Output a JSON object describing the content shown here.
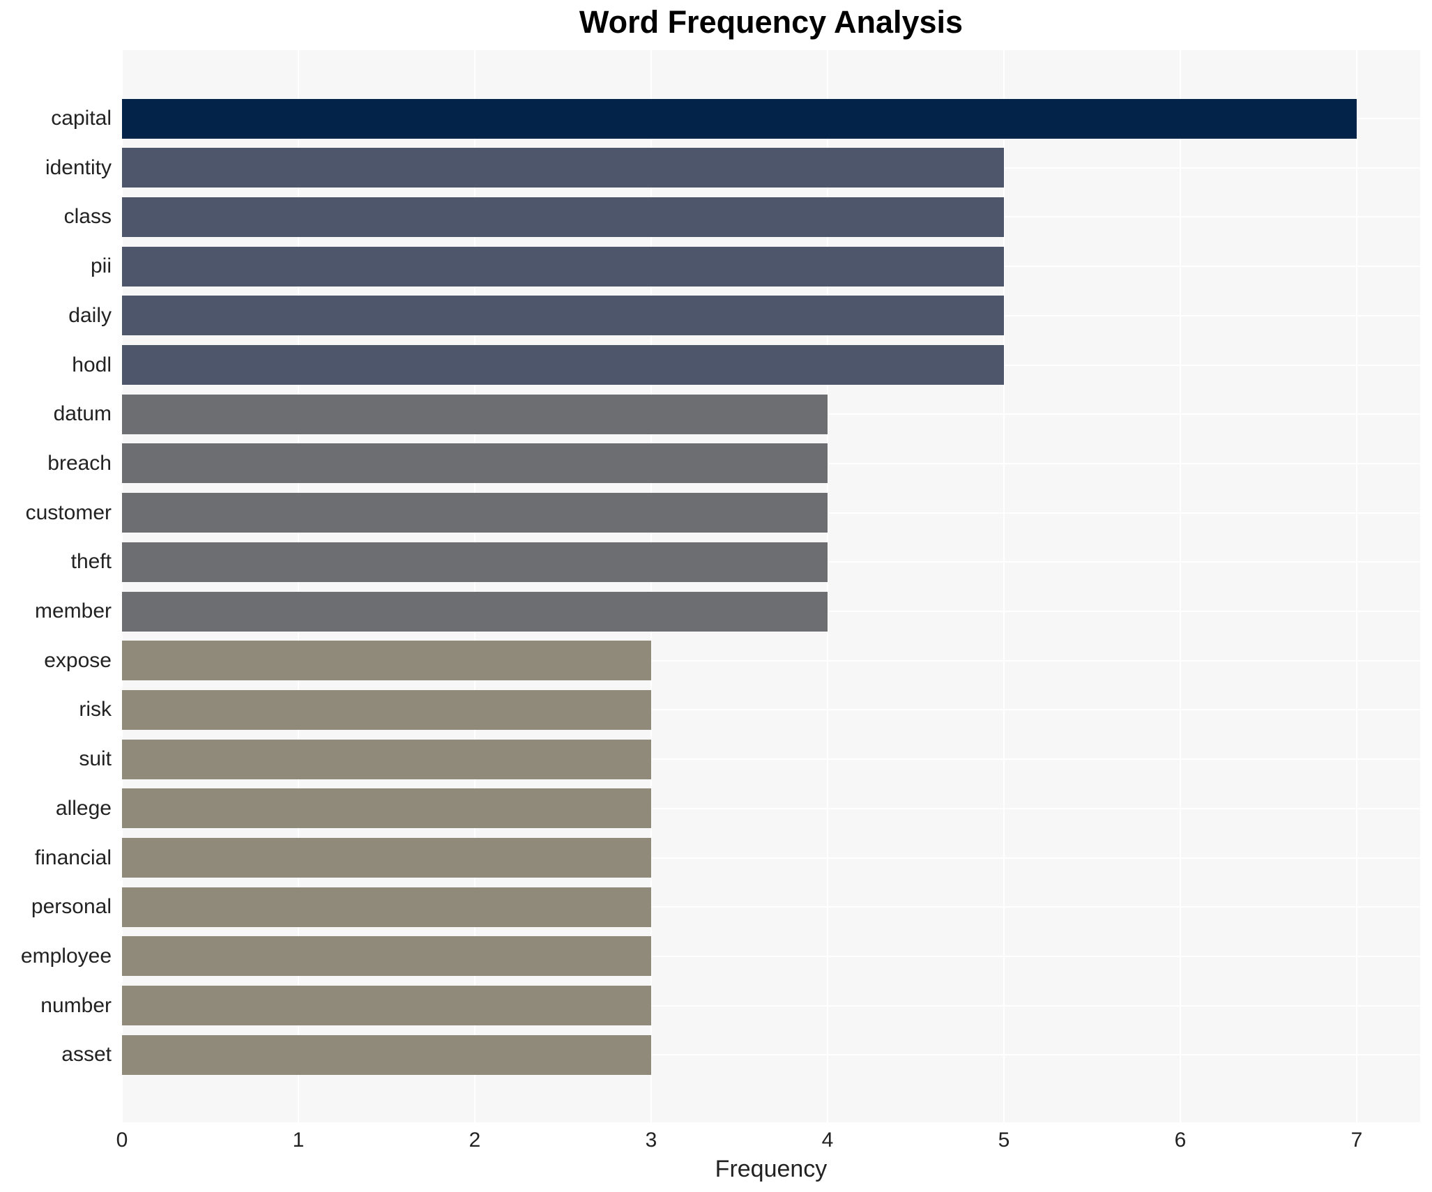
{
  "chart_data": {
    "type": "bar",
    "orientation": "horizontal",
    "title": "Word Frequency Analysis",
    "xlabel": "Frequency",
    "ylabel": "",
    "categories": [
      "capital",
      "identity",
      "class",
      "pii",
      "daily",
      "hodl",
      "datum",
      "breach",
      "customer",
      "theft",
      "member",
      "expose",
      "risk",
      "suit",
      "allege",
      "financial",
      "personal",
      "employee",
      "number",
      "asset"
    ],
    "values": [
      7,
      5,
      5,
      5,
      5,
      5,
      4,
      4,
      4,
      4,
      4,
      3,
      3,
      3,
      3,
      3,
      3,
      3,
      3,
      3
    ],
    "bar_colors": [
      "#042349",
      "#4d566b",
      "#4d566b",
      "#4d566b",
      "#4d566b",
      "#4d566b",
      "#6c6e71",
      "#6c6e71",
      "#6c6e71",
      "#6c6e71",
      "#6c6e71",
      "#8f8a7a",
      "#8f8a7a",
      "#8f8a7a",
      "#8f8a7a",
      "#8f8a7a",
      "#8f8a7a",
      "#8f8a7a",
      "#8f8a7a",
      "#8f8a7a"
    ],
    "xticks": [
      "0",
      "1",
      "2",
      "3",
      "4",
      "5",
      "6",
      "7"
    ],
    "xlim": [
      0,
      7.36
    ],
    "grid": true,
    "legend": "none",
    "grid_color": "#ffffff",
    "plot_background": "#f7f7f7",
    "figure_background": "#ffffff",
    "tick_color": "#222222",
    "title_color": "#000000"
  }
}
